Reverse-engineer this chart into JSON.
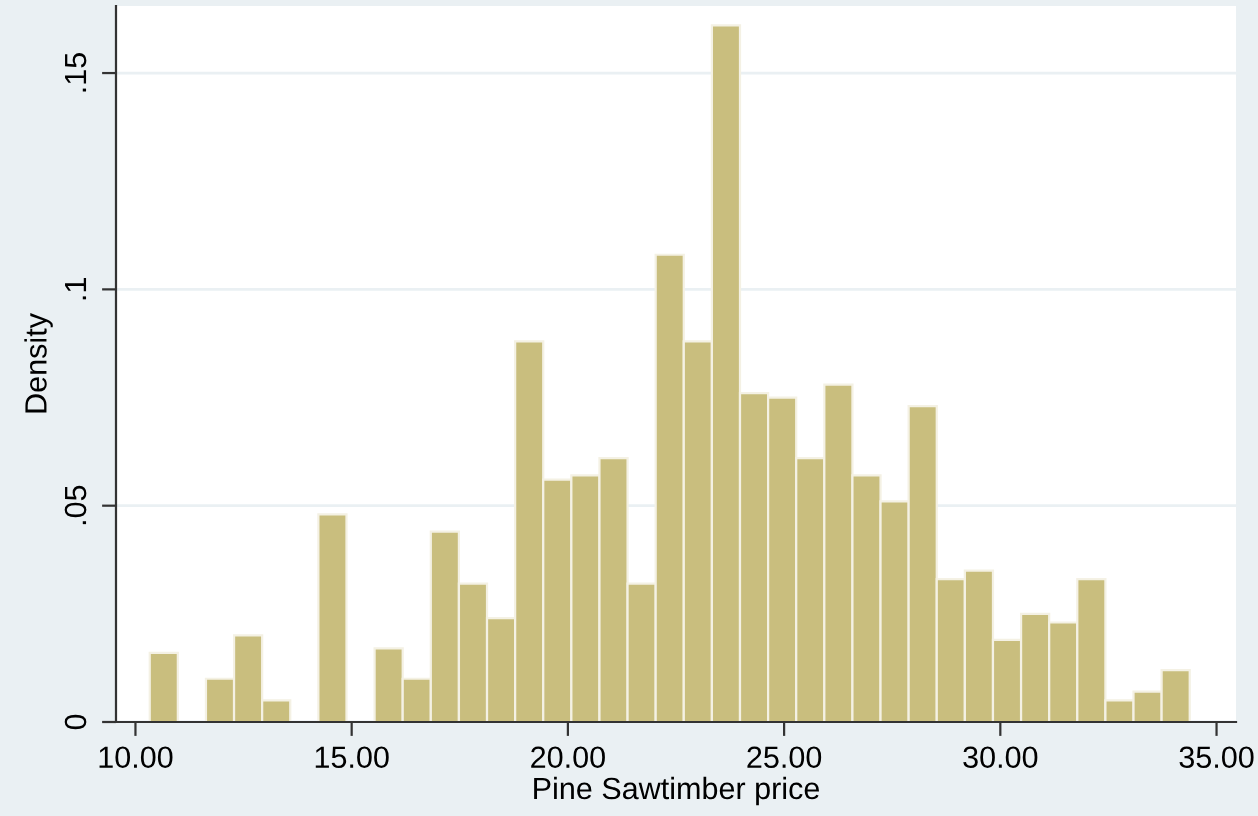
{
  "chart_data": {
    "type": "histogram",
    "xlabel": "Pine Sawtimber price",
    "ylabel": "Density",
    "bins": [
      10.33,
      10.98,
      11.63,
      12.28,
      12.93,
      13.58,
      14.23,
      14.88,
      15.53,
      16.18,
      16.83,
      17.48,
      18.13,
      18.78,
      19.43,
      20.08,
      20.73,
      21.38,
      22.03,
      22.68,
      23.33,
      23.98,
      24.63,
      25.28,
      25.93,
      26.58,
      27.23,
      27.88,
      28.53,
      29.18,
      29.83,
      30.48,
      31.13,
      31.78,
      32.43,
      33.08,
      33.73,
      34.38
    ],
    "values": [
      0.016,
      0,
      0.01,
      0.02,
      0.005,
      0,
      0.048,
      0,
      0.017,
      0.01,
      0.044,
      0.032,
      0.024,
      0.088,
      0.056,
      0.057,
      0.061,
      0.032,
      0.108,
      0.088,
      0.161,
      0.076,
      0.075,
      0.061,
      0.078,
      0.057,
      0.051,
      0.073,
      0.033,
      0.035,
      0.019,
      0.025,
      0.023,
      0.033,
      0.005,
      0.007,
      0.012
    ],
    "color": "#c9be7e",
    "xlim": [
      9.55,
      35.45
    ],
    "xticks": [
      {
        "value": 10,
        "label": "10.00"
      },
      {
        "value": 15,
        "label": "15.00"
      },
      {
        "value": 20,
        "label": "20.00"
      },
      {
        "value": 25,
        "label": "25.00"
      },
      {
        "value": 30,
        "label": "30.00"
      },
      {
        "value": 35,
        "label": "35.00"
      }
    ],
    "ylim": [
      0,
      0.1655
    ],
    "yticks": [
      {
        "value": 0,
        "label": "0"
      },
      {
        "value": 0.05,
        "label": ".05"
      },
      {
        "value": 0.1,
        "label": ".1"
      },
      {
        "value": 0.15,
        "label": ".15"
      }
    ],
    "grid": "y",
    "legend": false
  }
}
